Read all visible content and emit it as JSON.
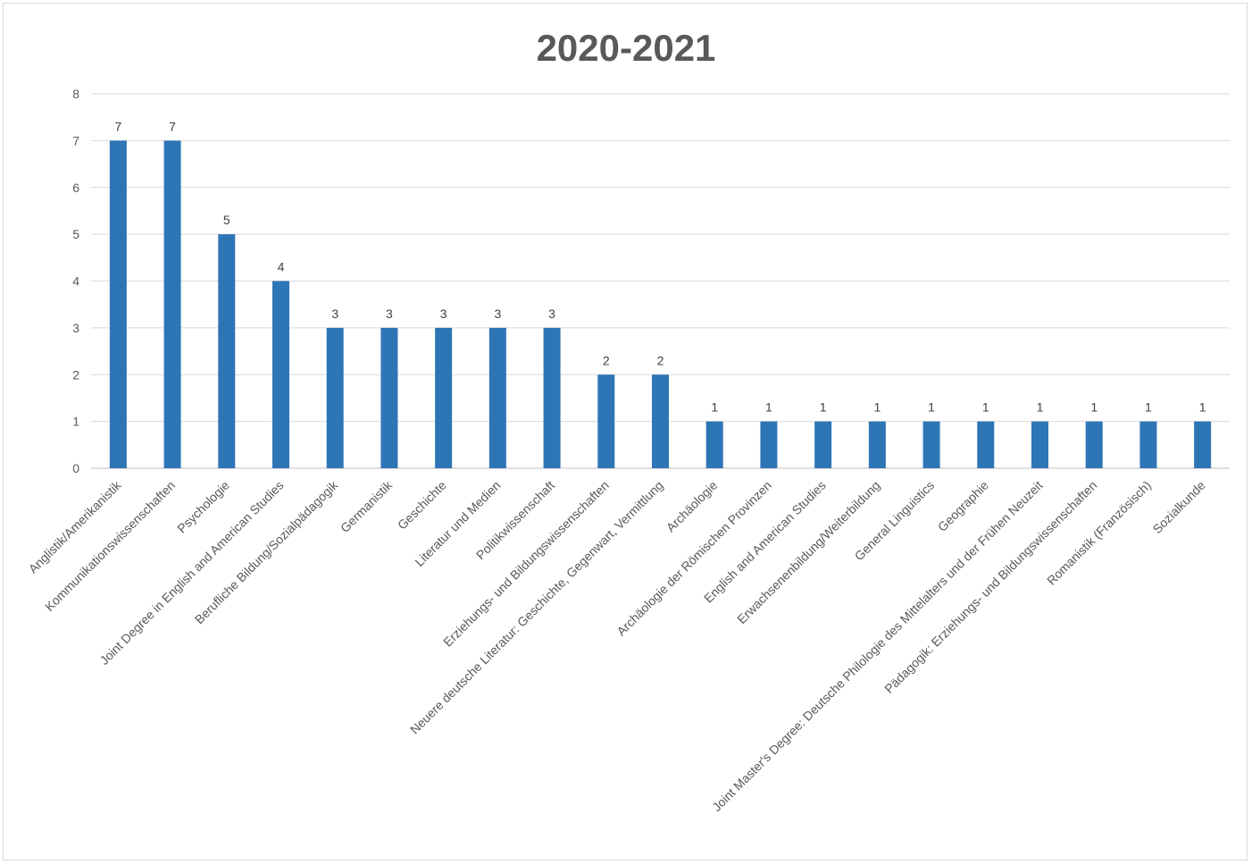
{
  "chart_data": {
    "type": "bar",
    "title": "2020-2021",
    "xlabel": "",
    "ylabel": "",
    "ylim": [
      0,
      8
    ],
    "yticks": [
      "0",
      "1",
      "2",
      "3",
      "4",
      "5",
      "6",
      "7",
      "8"
    ],
    "grid": true,
    "legend": "none",
    "bar_color": "#2e75b6",
    "categories": [
      "Anglistik/Amerikanistik",
      "Kommunikationswissenschaften",
      "Psychologie",
      "Joint Degree in English and American Studies",
      "Berufliche Bildung/Sozialpädagogik",
      "Germanistik",
      "Geschichte",
      "Literatur und Medien",
      "Politikwissenschaft",
      "Erziehungs- und Bildungswissenschaften",
      "Neuere deutsche Literatur: Geschichte, Gegenwart, Vermittlung",
      "Archäologie",
      "Archäologie der Römischen Provinzen",
      "English and American Studies",
      "Erwachsenenbildung/Weiterbildung",
      "General Linguistics",
      "Geographie",
      "Joint Master's Degree: Deutsche Philologie des Mittelalters und der Frühen Neuzeit",
      "Pädagogik: Erziehungs- und Bildungswissenschaften",
      "Romanistik (Französisch)",
      "Sozialkunde"
    ],
    "values": [
      7,
      7,
      5,
      4,
      3,
      3,
      3,
      3,
      3,
      2,
      2,
      1,
      1,
      1,
      1,
      1,
      1,
      1,
      1,
      1,
      1
    ]
  }
}
